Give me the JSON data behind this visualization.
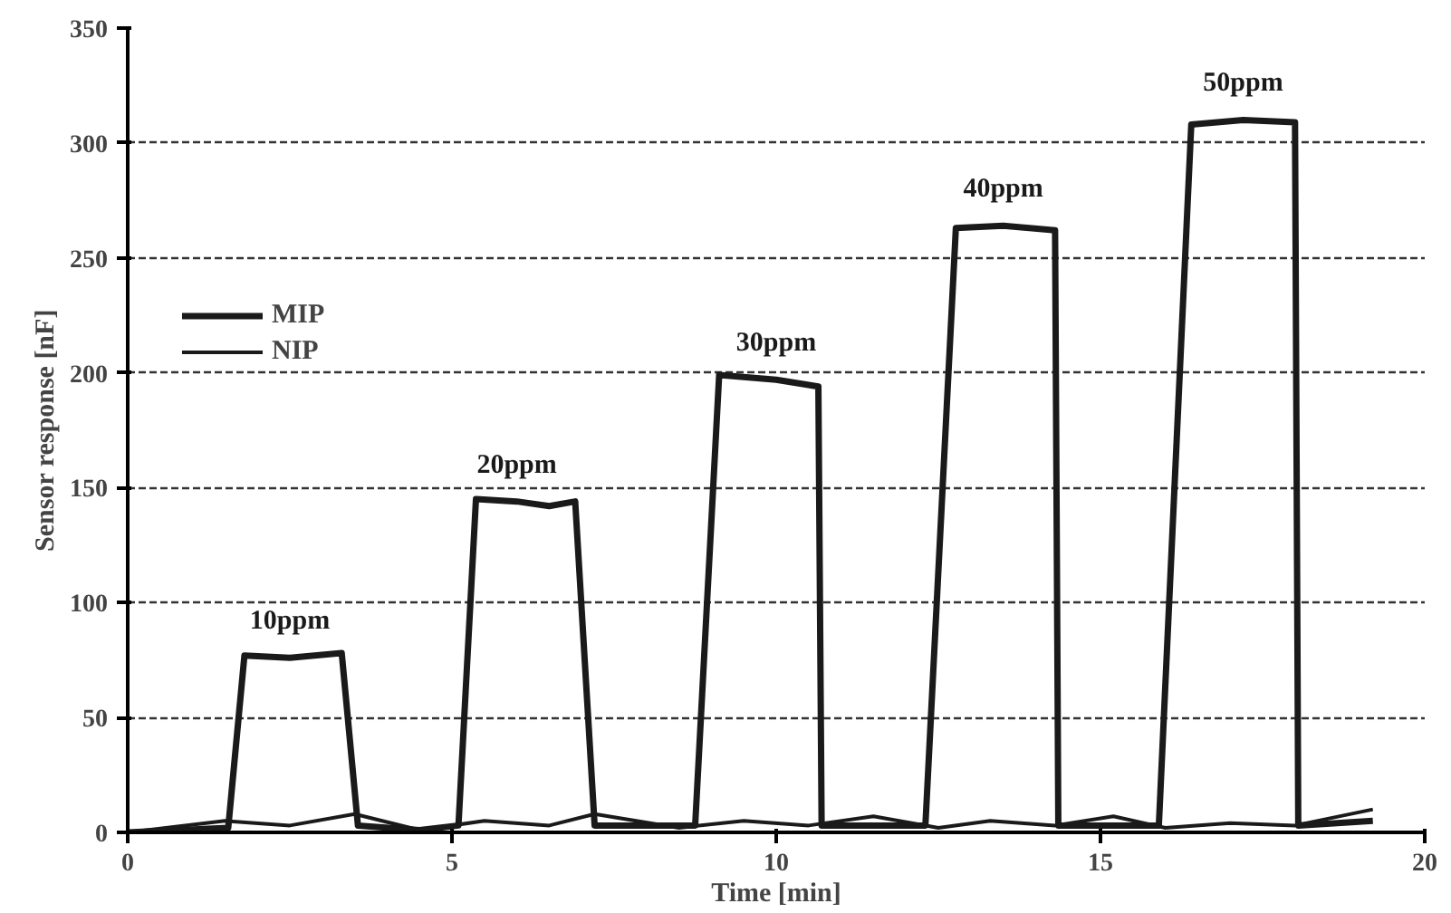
{
  "chart_data": {
    "type": "line",
    "xlabel": "Time [min]",
    "ylabel": "Sensor response [nF]",
    "xlim": [
      0,
      20
    ],
    "ylim": [
      0,
      350
    ],
    "xticks": [
      0,
      5,
      10,
      15,
      20
    ],
    "yticks": [
      0,
      50,
      100,
      150,
      200,
      250,
      300,
      350
    ],
    "grid": "y",
    "legend": "top left",
    "marker": "none",
    "line_style": "solid",
    "series": [
      {
        "name": "MIP",
        "color": "#1a1a1a",
        "x": [
          0,
          1.55,
          1.8,
          2.5,
          3.3,
          3.55,
          4.5,
          5.1,
          5.37,
          6.0,
          6.5,
          6.9,
          7.2,
          8.75,
          9.12,
          10.0,
          10.65,
          10.7,
          12.3,
          12.77,
          13.5,
          14.3,
          14.35,
          15.9,
          16.4,
          17.2,
          18.0,
          18.05,
          19.2
        ],
        "values": [
          0,
          2,
          77,
          76,
          78,
          3,
          1,
          3,
          145,
          144,
          142,
          144,
          3,
          3,
          199,
          197,
          194,
          3,
          3,
          263,
          264,
          262,
          3,
          3,
          308,
          310,
          309,
          3,
          5
        ]
      },
      {
        "name": "NIP",
        "color": "#1a1a1a",
        "x": [
          0,
          1.5,
          2.5,
          3.5,
          4.5,
          5.5,
          6.5,
          7.2,
          8.5,
          9.5,
          10.5,
          11.5,
          12.5,
          13.3,
          14.3,
          15.2,
          16,
          17,
          18,
          19.2
        ],
        "values": [
          0,
          5,
          3,
          8,
          1,
          5,
          3,
          8,
          2,
          5,
          3,
          7,
          2,
          5,
          3,
          7,
          2,
          4,
          3,
          10
        ]
      }
    ],
    "annotations": [
      {
        "text": "10ppm",
        "x": 2.5,
        "y": 76
      },
      {
        "text": "20ppm",
        "x": 6.0,
        "y": 144
      },
      {
        "text": "30ppm",
        "x": 10.0,
        "y": 197
      },
      {
        "text": "40ppm",
        "x": 13.5,
        "y": 264
      },
      {
        "text": "50ppm",
        "x": 17.2,
        "y": 310
      }
    ]
  }
}
